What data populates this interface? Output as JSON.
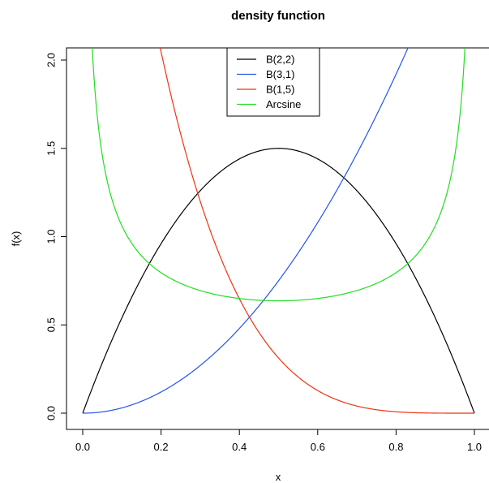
{
  "chart_data": {
    "type": "line",
    "title": "density function",
    "xlabel": "x",
    "ylabel": "f(x)",
    "xlim": [
      0,
      1
    ],
    "ylim": [
      0,
      2
    ],
    "x_ticks": [
      "0.0",
      "0.2",
      "0.4",
      "0.6",
      "0.8",
      "1.0"
    ],
    "y_ticks": [
      "0.0",
      "0.5",
      "1.0",
      "1.5",
      "2.0"
    ],
    "legend_position": "top-center",
    "series": [
      {
        "name": "B(2,2)",
        "color": "#000000",
        "formula": "6x(1-x)"
      },
      {
        "name": "B(3,1)",
        "color": "#2255ee",
        "formula": "3x^2"
      },
      {
        "name": "B(1,5)",
        "color": "#ee3311",
        "formula": "5(1-x)^4"
      },
      {
        "name": "Arcsine",
        "color": "#22dd22",
        "formula": "1/(pi*sqrt(x(1-x)))"
      }
    ]
  }
}
